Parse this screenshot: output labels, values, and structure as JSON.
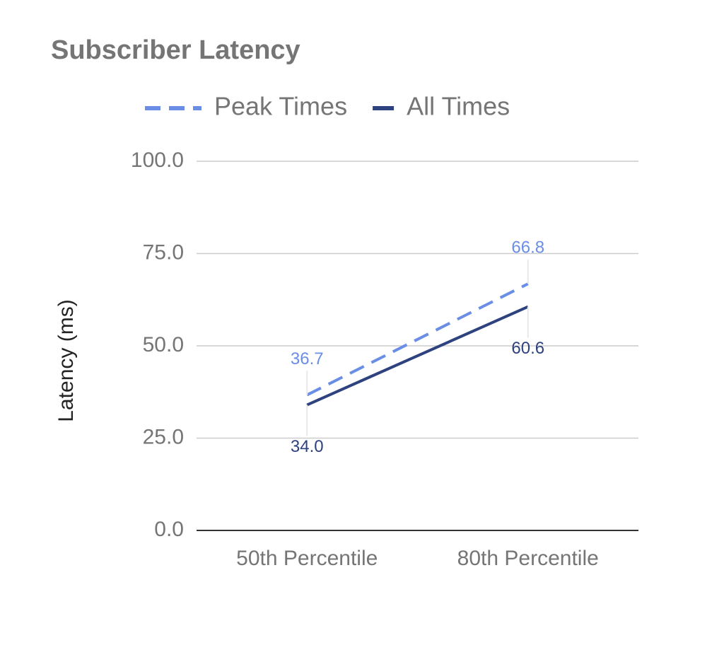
{
  "chart_data": {
    "type": "line",
    "title": "Subscriber Latency",
    "ylabel": "Latency (ms)",
    "categories": [
      "50th Percentile",
      "80th Percentile"
    ],
    "series": [
      {
        "name": "Peak Times",
        "color": "#6a8de6",
        "dashed": true,
        "values": [
          36.7,
          66.8
        ],
        "value_labels": [
          "36.7",
          "66.8"
        ],
        "label_position": "above"
      },
      {
        "name": "All Times",
        "color": "#2e4280",
        "dashed": false,
        "values": [
          34.0,
          60.6
        ],
        "value_labels": [
          "34.0",
          "60.6"
        ],
        "label_position": "below"
      }
    ],
    "ylim": [
      0,
      100
    ],
    "yticks": [
      {
        "value": 0,
        "label": "0.0"
      },
      {
        "value": 25,
        "label": "25.0"
      },
      {
        "value": 50,
        "label": "50.0"
      },
      {
        "value": 75,
        "label": "75.0"
      },
      {
        "value": 100,
        "label": "100.0"
      }
    ],
    "grid": true,
    "legend": "top"
  }
}
